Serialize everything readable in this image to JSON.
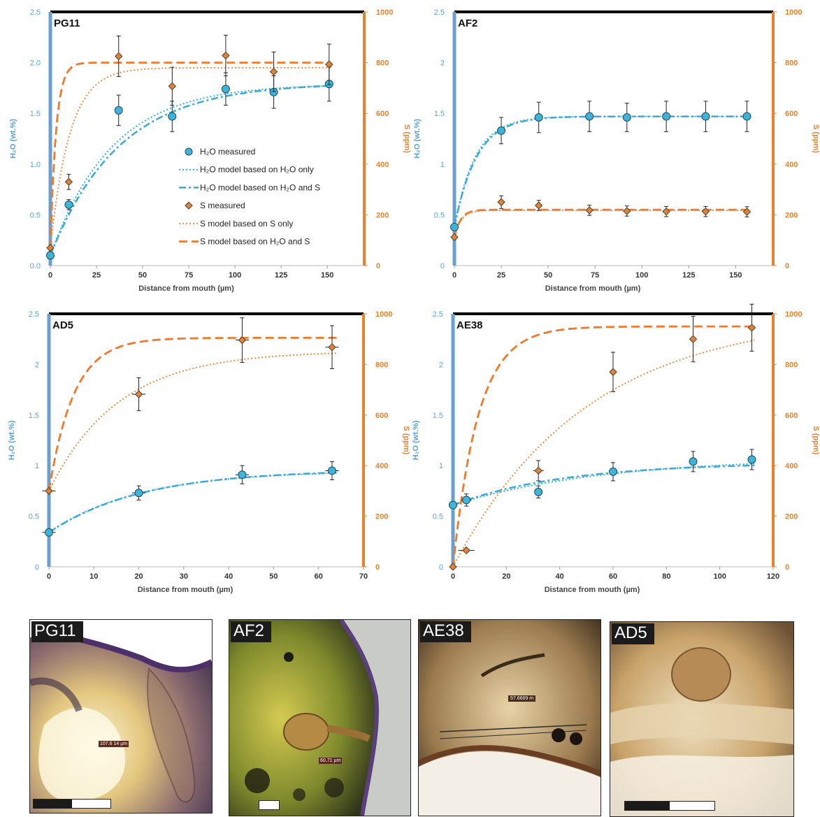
{
  "colors": {
    "h2o_axis": "#6a9fd0",
    "h2o_label": "#5aa3d6",
    "s_axis": "#e8822e",
    "h2o_marker": "#3fb3d8",
    "h2o_model_only": "#34aee0",
    "h2o_model_both": "#3aa9db",
    "s_marker": "#d9853f",
    "s_model_only": "#ee8a3c",
    "s_model_both": "#ef7a2c"
  },
  "legend": [
    {
      "key": "h2o_meas",
      "label": "H₂O measured"
    },
    {
      "key": "h2o_only",
      "label": "H₂O model based on H₂O only"
    },
    {
      "key": "h2o_both",
      "label": "H₂O model based on H₂O and S"
    },
    {
      "key": "s_meas",
      "label": "S measured"
    },
    {
      "key": "s_only",
      "label": "S model based on S only"
    },
    {
      "key": "s_both",
      "label": "S model based on H₂O and S"
    }
  ],
  "chart_data": [
    {
      "id": "pg11",
      "type": "scatter",
      "title": "PG11",
      "xlabel": "Distance from mouth (µm)",
      "ylabel": "H₂O (wt.%)",
      "y2label": "S (ppm)",
      "xlim": [
        0,
        170
      ],
      "xticks": [
        0,
        25,
        50,
        75,
        100,
        125,
        150
      ],
      "ylim": [
        0,
        2.5
      ],
      "yticks": [
        "0.0",
        "0.5",
        "1.0",
        "1.5",
        "2.0",
        "2.5"
      ],
      "y2lim": [
        0,
        1000
      ],
      "y2ticks": [
        "0",
        "200",
        "400",
        "600",
        "800",
        "1000"
      ],
      "h2o_measured": [
        {
          "x": 0,
          "y": 0.1,
          "yerr": 0,
          "xerr": 0
        },
        {
          "x": 10,
          "y": 0.6,
          "yerr": 0.05,
          "xerr": 0
        },
        {
          "x": 37,
          "y": 1.53,
          "yerr": 0.15,
          "xerr": 0
        },
        {
          "x": 66,
          "y": 1.47,
          "yerr": 0.15,
          "xerr": 0
        },
        {
          "x": 95,
          "y": 1.74,
          "yerr": 0.16,
          "xerr": 0
        },
        {
          "x": 121,
          "y": 1.71,
          "yerr": 0.16,
          "xerr": 0
        },
        {
          "x": 151,
          "y": 1.79,
          "yerr": 0.17,
          "xerr": 0
        }
      ],
      "s_measured": [
        {
          "x": 0,
          "y": 70,
          "yerr": 0,
          "xerr": 0
        },
        {
          "x": 10,
          "y": 330,
          "yerr": 30,
          "xerr": 0
        },
        {
          "x": 37,
          "y": 825,
          "yerr": 80,
          "xerr": 0
        },
        {
          "x": 66,
          "y": 707,
          "yerr": 75,
          "xerr": 0
        },
        {
          "x": 95,
          "y": 828,
          "yerr": 80,
          "xerr": 0
        },
        {
          "x": 121,
          "y": 764,
          "yerr": 78,
          "xerr": 0
        },
        {
          "x": 151,
          "y": 793,
          "yerr": 80,
          "xerr": 0
        }
      ],
      "models": {
        "h2o_only": {
          "start": 0.1,
          "end": 1.79,
          "k": 0.03,
          "xmax": 152
        },
        "h2o_both": {
          "start": 0.1,
          "end": 1.8,
          "k": 0.027,
          "xmax": 152
        },
        "s_only": {
          "start": 70,
          "end": 780,
          "k": 0.095,
          "xmax": 152
        },
        "s_both": {
          "start": 70,
          "end": 800,
          "k": 0.32,
          "xmax": 152
        }
      }
    },
    {
      "id": "af2",
      "type": "scatter",
      "title": "AF2",
      "xlabel": "Distance from mouth (µm)",
      "ylabel": "H₂O (wt.%)",
      "y2label": "S (ppm)",
      "xlim": [
        0,
        170
      ],
      "xticks": [
        0,
        25,
        50,
        75,
        100,
        125,
        150
      ],
      "ylim": [
        0,
        2.5
      ],
      "yticks": [
        "0",
        "0.5",
        "1",
        "1.5",
        "2",
        "2.5"
      ],
      "y2lim": [
        0,
        1000
      ],
      "y2ticks": [
        "0",
        "200",
        "400",
        "600",
        "800",
        "1000"
      ],
      "h2o_measured": [
        {
          "x": 0,
          "y": 0.38,
          "yerr": 0,
          "xerr": 0
        },
        {
          "x": 25,
          "y": 1.33,
          "yerr": 0.13,
          "xerr": 0
        },
        {
          "x": 45,
          "y": 1.46,
          "yerr": 0.15,
          "xerr": 0
        },
        {
          "x": 72,
          "y": 1.47,
          "yerr": 0.15,
          "xerr": 0
        },
        {
          "x": 92,
          "y": 1.46,
          "yerr": 0.14,
          "xerr": 0
        },
        {
          "x": 113,
          "y": 1.47,
          "yerr": 0.15,
          "xerr": 0
        },
        {
          "x": 134,
          "y": 1.47,
          "yerr": 0.15,
          "xerr": 0
        },
        {
          "x": 156,
          "y": 1.47,
          "yerr": 0.15,
          "xerr": 0
        }
      ],
      "s_measured": [
        {
          "x": 0,
          "y": 112,
          "yerr": 0,
          "xerr": 0
        },
        {
          "x": 25,
          "y": 250,
          "yerr": 25,
          "xerr": 0
        },
        {
          "x": 45,
          "y": 237,
          "yerr": 20,
          "xerr": 0
        },
        {
          "x": 72,
          "y": 218,
          "yerr": 20,
          "xerr": 0
        },
        {
          "x": 92,
          "y": 215,
          "yerr": 20,
          "xerr": 0
        },
        {
          "x": 113,
          "y": 213,
          "yerr": 20,
          "xerr": 0
        },
        {
          "x": 134,
          "y": 213,
          "yerr": 20,
          "xerr": 0
        },
        {
          "x": 156,
          "y": 212,
          "yerr": 20,
          "xerr": 0
        }
      ],
      "models": {
        "h2o_only": {
          "start": 0.38,
          "end": 1.47,
          "k": 0.09,
          "xmax": 157
        },
        "h2o_both": {
          "start": 0.38,
          "end": 1.47,
          "k": 0.085,
          "xmax": 157
        },
        "s_only": {
          "start": 112,
          "end": 218,
          "k": 0.28,
          "xmax": 157
        },
        "s_both": {
          "start": 112,
          "end": 220,
          "k": 0.3,
          "xmax": 157
        }
      }
    },
    {
      "id": "ad5",
      "type": "scatter",
      "title": "AD5",
      "xlabel": "Distance from mouth (µm)",
      "ylabel": "H₂O (wt.%)",
      "y2label": "S (ppm)",
      "xlim": [
        0,
        70
      ],
      "xticks": [
        0,
        10,
        20,
        30,
        40,
        50,
        60,
        70
      ],
      "ylim": [
        0,
        2.5
      ],
      "yticks": [
        "0",
        "0.5",
        "1",
        "1.5",
        "2",
        "2.5"
      ],
      "y2lim": [
        0,
        1000
      ],
      "y2ticks": [
        "0",
        "200",
        "400",
        "600",
        "800",
        "1000"
      ],
      "h2o_measured": [
        {
          "x": 0,
          "y": 0.34,
          "yerr": 0,
          "xerr": 1.5
        },
        {
          "x": 20,
          "y": 0.73,
          "yerr": 0.07,
          "xerr": 1.5
        },
        {
          "x": 43,
          "y": 0.91,
          "yerr": 0.09,
          "xerr": 1.5
        },
        {
          "x": 63,
          "y": 0.95,
          "yerr": 0.09,
          "xerr": 1.5
        }
      ],
      "s_measured": [
        {
          "x": 0,
          "y": 300,
          "yerr": 0,
          "xerr": 1.5
        },
        {
          "x": 20,
          "y": 682,
          "yerr": 65,
          "xerr": 1.5
        },
        {
          "x": 43,
          "y": 896,
          "yerr": 88,
          "xerr": 1.5
        },
        {
          "x": 63,
          "y": 868,
          "yerr": 85,
          "xerr": 1.5
        }
      ],
      "models": {
        "h2o_only": {
          "start": 0.34,
          "end": 0.95,
          "k": 0.05,
          "xmax": 64
        },
        "h2o_both": {
          "start": 0.34,
          "end": 0.96,
          "k": 0.048,
          "xmax": 64
        },
        "s_only": {
          "start": 300,
          "end": 853,
          "k": 0.065,
          "xmax": 64
        },
        "s_both": {
          "start": 300,
          "end": 905,
          "k": 0.18,
          "xmax": 64
        }
      }
    },
    {
      "id": "ae38",
      "type": "scatter",
      "title": "AE38",
      "xlabel": "Distance from mouth (µm)",
      "ylabel": "H₂O (wt.%)",
      "y2label": "S (ppm)",
      "xlim": [
        0,
        120
      ],
      "xticks": [
        0,
        20,
        40,
        60,
        80,
        100,
        120
      ],
      "ylim": [
        0,
        2.5
      ],
      "yticks": [
        "0",
        "0.5",
        "1",
        "1.5",
        "2",
        "2.5"
      ],
      "y2lim": [
        0,
        1000
      ],
      "y2ticks": [
        "0",
        "200",
        "400",
        "600",
        "800",
        "1000"
      ],
      "h2o_measured": [
        {
          "x": 0,
          "y": 0.61,
          "yerr": 0,
          "xerr": 0
        },
        {
          "x": 5,
          "y": 0.66,
          "yerr": 0.06,
          "xerr": 2
        },
        {
          "x": 32,
          "y": 0.74,
          "yerr": 0.06,
          "xerr": 0
        },
        {
          "x": 60,
          "y": 0.94,
          "yerr": 0.09,
          "xerr": 0
        },
        {
          "x": 90,
          "y": 1.04,
          "yerr": 0.1,
          "xerr": 0
        },
        {
          "x": 112,
          "y": 1.06,
          "yerr": 0.1,
          "xerr": 0
        }
      ],
      "s_measured": [
        {
          "x": 0,
          "y": 0,
          "yerr": 0,
          "xerr": 0
        },
        {
          "x": 5,
          "y": 65,
          "yerr": 0,
          "xerr": 3
        },
        {
          "x": 32,
          "y": 380,
          "yerr": 40,
          "xerr": 2
        },
        {
          "x": 60,
          "y": 770,
          "yerr": 78,
          "xerr": 0
        },
        {
          "x": 90,
          "y": 900,
          "yerr": 90,
          "xerr": 0
        },
        {
          "x": 112,
          "y": 945,
          "yerr": 93,
          "xerr": 0
        }
      ],
      "models": {
        "h2o_only": {
          "start": 0.61,
          "end": 1.08,
          "k": 0.018,
          "xmax": 113
        },
        "h2o_both": {
          "start": 0.61,
          "end": 1.03,
          "k": 0.024,
          "xmax": 113
        },
        "s_only": {
          "start": 0,
          "end": 1000,
          "k": 0.02,
          "xmax": 113
        },
        "s_both": {
          "start": 0,
          "end": 950,
          "k": 0.105,
          "xmax": 113
        }
      }
    }
  ],
  "photos": [
    {
      "label": "PG11",
      "measure": "107.6 14 µm"
    },
    {
      "label": "AF2",
      "measure": "60.71 µm"
    },
    {
      "label": "AE38",
      "measure": "57.6669 m"
    },
    {
      "label": "AD5"
    }
  ]
}
